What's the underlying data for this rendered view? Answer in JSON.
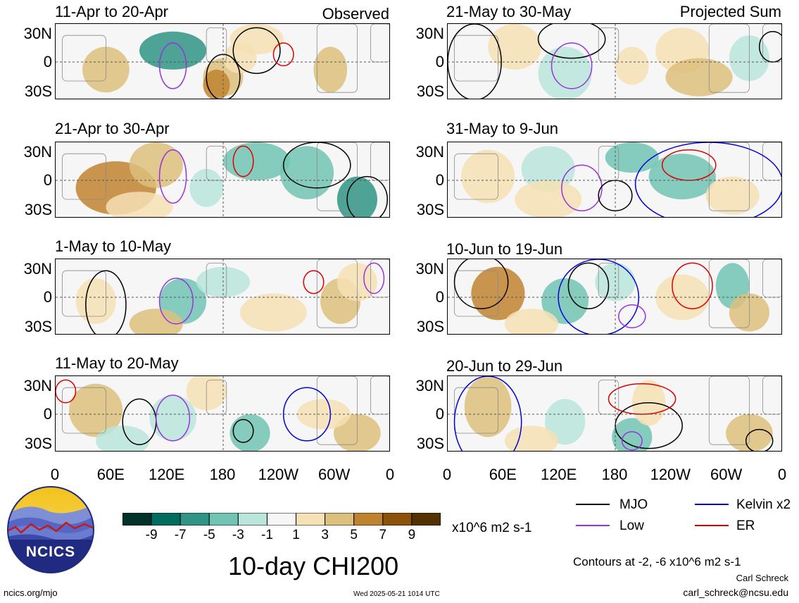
{
  "panels_left": [
    {
      "date_range": "11-Apr to 20-Apr",
      "corner_label": "Observed"
    },
    {
      "date_range": "21-Apr to 30-Apr",
      "corner_label": ""
    },
    {
      "date_range": "1-May to 10-May",
      "corner_label": ""
    },
    {
      "date_range": "11-May to 20-May",
      "corner_label": ""
    }
  ],
  "panels_right": [
    {
      "date_range": "21-May to 30-May",
      "corner_label": "Projected Sum"
    },
    {
      "date_range": "31-May to 9-Jun",
      "corner_label": ""
    },
    {
      "date_range": "10-Jun to 19-Jun",
      "corner_label": ""
    },
    {
      "date_range": "20-Jun to 29-Jun",
      "corner_label": ""
    }
  ],
  "lat_ticks": [
    "30N",
    "0",
    "30S"
  ],
  "lon_ticks": [
    "0",
    "60E",
    "120E",
    "180",
    "120W",
    "60W",
    "0"
  ],
  "colorbar": {
    "colors": [
      "#00312b",
      "#006b5f",
      "#2f9485",
      "#71c4b4",
      "#b9e5db",
      "#f6f6f6",
      "#f6e0b5",
      "#dcc07d",
      "#bf8330",
      "#8c520b",
      "#543005"
    ],
    "labels": [
      "-9",
      "-7",
      "-5",
      "-3",
      "-1",
      "1",
      "3",
      "5",
      "7",
      "9"
    ],
    "units": "x10^6 m2 s-1"
  },
  "legend": [
    {
      "label": "MJO",
      "color": "#000000"
    },
    {
      "label": "Kelvin x2",
      "color": "#0000dd"
    },
    {
      "label": "Low",
      "color": "#9933dd"
    },
    {
      "label": "ER",
      "color": "#dd0000"
    }
  ],
  "main_title": "10-day CHI200",
  "contour_note": "Contours at -2, -6 x10^6 m2 s-1",
  "author": "Carl Schreck",
  "email": "carl_schreck@ncsu.edu",
  "website": "ncics.org/mjo",
  "timestamp": "Wed 2025-05-21 1014 UTC",
  "logo_text": "NCICS"
}
